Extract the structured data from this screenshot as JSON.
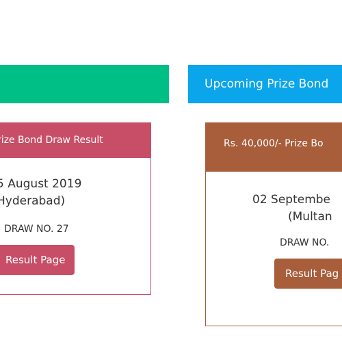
{
  "sections": {
    "left_title": "",
    "right_title": "Upcoming Prize Bond"
  },
  "cards": [
    {
      "header": "rize Bond Draw Result",
      "date": "5 August 2019",
      "city": "Hyderabad)",
      "draw": "DRAW NO. 27",
      "button": "Result Page"
    },
    {
      "header": "Rs. 40,000/- Prize Bo",
      "date": "02 Septembe",
      "city": "(Multan",
      "draw": "DRAW NO.",
      "button": "Result Pag"
    }
  ],
  "colors": {
    "green": "#00bf86",
    "blue": "#0aa5ea",
    "rose": "#c84e68",
    "brown": "#a85d3b"
  }
}
